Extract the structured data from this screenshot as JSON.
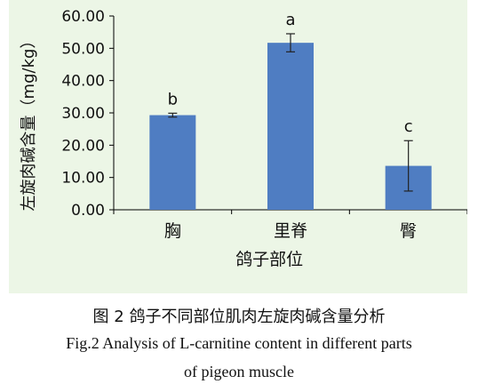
{
  "chart_data": {
    "type": "bar",
    "categories": [
      "胸",
      "里脊",
      "臀"
    ],
    "values": [
      29.3,
      51.7,
      13.6
    ],
    "errors": [
      0.6,
      2.8,
      7.8
    ],
    "significance_letters": [
      "b",
      "a",
      "c"
    ],
    "xlabel": "鸽子部位",
    "ylabel": "左旋肉碱含量（mg/kg）",
    "ylim": [
      0,
      60
    ],
    "yticks": [
      "0.00",
      "10.00",
      "20.00",
      "30.00",
      "40.00",
      "50.00",
      "60.00"
    ],
    "grid": false,
    "bar_color": "#4f7dc2",
    "panel_color": "#ecf6e6"
  },
  "caption": {
    "zh": "图 2  鸽子不同部位肌肉左旋肉碱含量分析",
    "en_line1": "Fig.2 Analysis of L-carnitine content in different parts",
    "en_line2": "of pigeon muscle"
  }
}
